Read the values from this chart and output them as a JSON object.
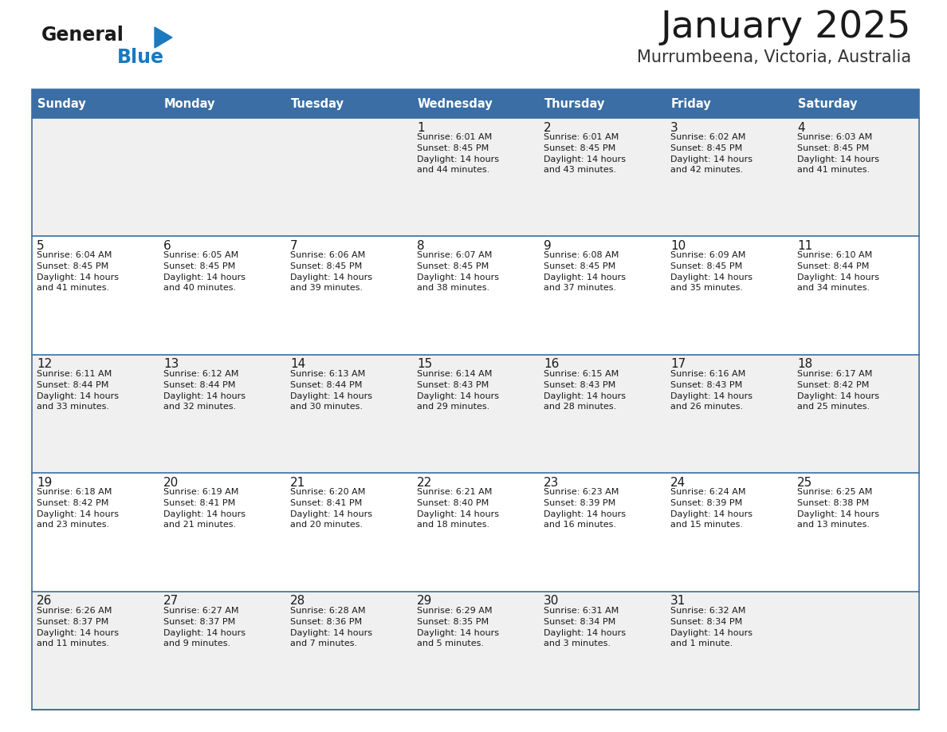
{
  "title": "January 2025",
  "subtitle": "Murrumbeena, Victoria, Australia",
  "header_bg": "#3a6ea5",
  "header_text_color": "#ffffff",
  "row_bg_odd": "#f0f0f0",
  "row_bg_even": "#ffffff",
  "cell_border_color": "#3a6ea5",
  "day_headers": [
    "Sunday",
    "Monday",
    "Tuesday",
    "Wednesday",
    "Thursday",
    "Friday",
    "Saturday"
  ],
  "calendar": [
    [
      {
        "day": "",
        "sunrise": "",
        "sunset": "",
        "daylight": ""
      },
      {
        "day": "",
        "sunrise": "",
        "sunset": "",
        "daylight": ""
      },
      {
        "day": "",
        "sunrise": "",
        "sunset": "",
        "daylight": ""
      },
      {
        "day": "1",
        "sunrise": "Sunrise: 6:01 AM",
        "sunset": "Sunset: 8:45 PM",
        "daylight": "Daylight: 14 hours\nand 44 minutes."
      },
      {
        "day": "2",
        "sunrise": "Sunrise: 6:01 AM",
        "sunset": "Sunset: 8:45 PM",
        "daylight": "Daylight: 14 hours\nand 43 minutes."
      },
      {
        "day": "3",
        "sunrise": "Sunrise: 6:02 AM",
        "sunset": "Sunset: 8:45 PM",
        "daylight": "Daylight: 14 hours\nand 42 minutes."
      },
      {
        "day": "4",
        "sunrise": "Sunrise: 6:03 AM",
        "sunset": "Sunset: 8:45 PM",
        "daylight": "Daylight: 14 hours\nand 41 minutes."
      }
    ],
    [
      {
        "day": "5",
        "sunrise": "Sunrise: 6:04 AM",
        "sunset": "Sunset: 8:45 PM",
        "daylight": "Daylight: 14 hours\nand 41 minutes."
      },
      {
        "day": "6",
        "sunrise": "Sunrise: 6:05 AM",
        "sunset": "Sunset: 8:45 PM",
        "daylight": "Daylight: 14 hours\nand 40 minutes."
      },
      {
        "day": "7",
        "sunrise": "Sunrise: 6:06 AM",
        "sunset": "Sunset: 8:45 PM",
        "daylight": "Daylight: 14 hours\nand 39 minutes."
      },
      {
        "day": "8",
        "sunrise": "Sunrise: 6:07 AM",
        "sunset": "Sunset: 8:45 PM",
        "daylight": "Daylight: 14 hours\nand 38 minutes."
      },
      {
        "day": "9",
        "sunrise": "Sunrise: 6:08 AM",
        "sunset": "Sunset: 8:45 PM",
        "daylight": "Daylight: 14 hours\nand 37 minutes."
      },
      {
        "day": "10",
        "sunrise": "Sunrise: 6:09 AM",
        "sunset": "Sunset: 8:45 PM",
        "daylight": "Daylight: 14 hours\nand 35 minutes."
      },
      {
        "day": "11",
        "sunrise": "Sunrise: 6:10 AM",
        "sunset": "Sunset: 8:44 PM",
        "daylight": "Daylight: 14 hours\nand 34 minutes."
      }
    ],
    [
      {
        "day": "12",
        "sunrise": "Sunrise: 6:11 AM",
        "sunset": "Sunset: 8:44 PM",
        "daylight": "Daylight: 14 hours\nand 33 minutes."
      },
      {
        "day": "13",
        "sunrise": "Sunrise: 6:12 AM",
        "sunset": "Sunset: 8:44 PM",
        "daylight": "Daylight: 14 hours\nand 32 minutes."
      },
      {
        "day": "14",
        "sunrise": "Sunrise: 6:13 AM",
        "sunset": "Sunset: 8:44 PM",
        "daylight": "Daylight: 14 hours\nand 30 minutes."
      },
      {
        "day": "15",
        "sunrise": "Sunrise: 6:14 AM",
        "sunset": "Sunset: 8:43 PM",
        "daylight": "Daylight: 14 hours\nand 29 minutes."
      },
      {
        "day": "16",
        "sunrise": "Sunrise: 6:15 AM",
        "sunset": "Sunset: 8:43 PM",
        "daylight": "Daylight: 14 hours\nand 28 minutes."
      },
      {
        "day": "17",
        "sunrise": "Sunrise: 6:16 AM",
        "sunset": "Sunset: 8:43 PM",
        "daylight": "Daylight: 14 hours\nand 26 minutes."
      },
      {
        "day": "18",
        "sunrise": "Sunrise: 6:17 AM",
        "sunset": "Sunset: 8:42 PM",
        "daylight": "Daylight: 14 hours\nand 25 minutes."
      }
    ],
    [
      {
        "day": "19",
        "sunrise": "Sunrise: 6:18 AM",
        "sunset": "Sunset: 8:42 PM",
        "daylight": "Daylight: 14 hours\nand 23 minutes."
      },
      {
        "day": "20",
        "sunrise": "Sunrise: 6:19 AM",
        "sunset": "Sunset: 8:41 PM",
        "daylight": "Daylight: 14 hours\nand 21 minutes."
      },
      {
        "day": "21",
        "sunrise": "Sunrise: 6:20 AM",
        "sunset": "Sunset: 8:41 PM",
        "daylight": "Daylight: 14 hours\nand 20 minutes."
      },
      {
        "day": "22",
        "sunrise": "Sunrise: 6:21 AM",
        "sunset": "Sunset: 8:40 PM",
        "daylight": "Daylight: 14 hours\nand 18 minutes."
      },
      {
        "day": "23",
        "sunrise": "Sunrise: 6:23 AM",
        "sunset": "Sunset: 8:39 PM",
        "daylight": "Daylight: 14 hours\nand 16 minutes."
      },
      {
        "day": "24",
        "sunrise": "Sunrise: 6:24 AM",
        "sunset": "Sunset: 8:39 PM",
        "daylight": "Daylight: 14 hours\nand 15 minutes."
      },
      {
        "day": "25",
        "sunrise": "Sunrise: 6:25 AM",
        "sunset": "Sunset: 8:38 PM",
        "daylight": "Daylight: 14 hours\nand 13 minutes."
      }
    ],
    [
      {
        "day": "26",
        "sunrise": "Sunrise: 6:26 AM",
        "sunset": "Sunset: 8:37 PM",
        "daylight": "Daylight: 14 hours\nand 11 minutes."
      },
      {
        "day": "27",
        "sunrise": "Sunrise: 6:27 AM",
        "sunset": "Sunset: 8:37 PM",
        "daylight": "Daylight: 14 hours\nand 9 minutes."
      },
      {
        "day": "28",
        "sunrise": "Sunrise: 6:28 AM",
        "sunset": "Sunset: 8:36 PM",
        "daylight": "Daylight: 14 hours\nand 7 minutes."
      },
      {
        "day": "29",
        "sunrise": "Sunrise: 6:29 AM",
        "sunset": "Sunset: 8:35 PM",
        "daylight": "Daylight: 14 hours\nand 5 minutes."
      },
      {
        "day": "30",
        "sunrise": "Sunrise: 6:31 AM",
        "sunset": "Sunset: 8:34 PM",
        "daylight": "Daylight: 14 hours\nand 3 minutes."
      },
      {
        "day": "31",
        "sunrise": "Sunrise: 6:32 AM",
        "sunset": "Sunset: 8:34 PM",
        "daylight": "Daylight: 14 hours\nand 1 minute."
      },
      {
        "day": "",
        "sunrise": "",
        "sunset": "",
        "daylight": ""
      }
    ]
  ],
  "logo_general_color": "#1a1a1a",
  "logo_blue_color": "#1a7abf",
  "logo_triangle_color": "#1a7abf",
  "fig_width": 11.88,
  "fig_height": 9.18,
  "fig_dpi": 100
}
